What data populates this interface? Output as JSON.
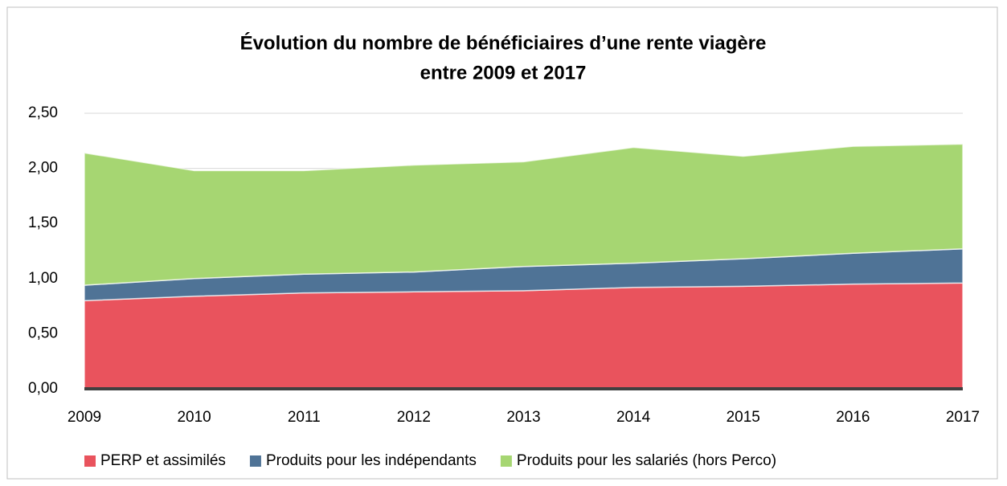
{
  "chart_data": {
    "type": "stacked_area",
    "title": [
      "Évolution du nombre de bénéficiaires d’une rente viagère",
      "entre 2009 et 2017"
    ],
    "categories": [
      "2009",
      "2010",
      "2011",
      "2012",
      "2013",
      "2014",
      "2015",
      "2016",
      "2017"
    ],
    "series": [
      {
        "name": "PERP et assimilés",
        "color": "#e9535d",
        "values": [
          0.8,
          0.84,
          0.87,
          0.88,
          0.89,
          0.92,
          0.93,
          0.95,
          0.96
        ]
      },
      {
        "name": "Produits pour les indépendants",
        "color": "#4f7396",
        "values": [
          0.14,
          0.16,
          0.17,
          0.18,
          0.22,
          0.22,
          0.25,
          0.28,
          0.31
        ]
      },
      {
        "name": "Produits pour les salariés (hors Perco)",
        "color": "#a6d672",
        "values": [
          1.2,
          0.98,
          0.94,
          0.97,
          0.95,
          1.05,
          0.93,
          0.97,
          0.95
        ]
      }
    ],
    "ylim": [
      0,
      2.5
    ],
    "yticks": [
      {
        "value": 0,
        "label": "0,00"
      },
      {
        "value": 0.5,
        "label": "0,50"
      },
      {
        "value": 1,
        "label": "1,00"
      },
      {
        "value": 1.5,
        "label": "1,50"
      },
      {
        "value": 2,
        "label": "2,00"
      },
      {
        "value": 2.5,
        "label": "2,50"
      }
    ],
    "grid": true,
    "legend": "bottom"
  }
}
